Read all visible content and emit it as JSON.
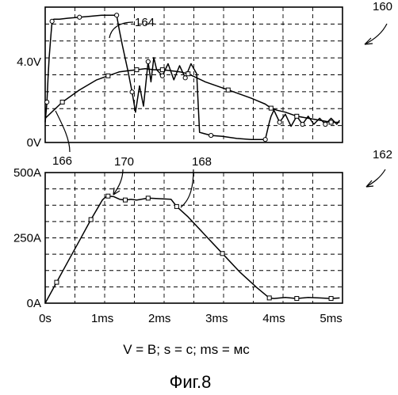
{
  "chart_data": [
    {
      "type": "line",
      "figure_ref": "160",
      "yticks": [
        "4.0V",
        "0V"
      ],
      "ytick_values": [
        4.0,
        0
      ],
      "ylim": [
        0,
        6.7
      ],
      "xlim": [
        0,
        5.2
      ],
      "grid": true,
      "series": [
        {
          "name": "164",
          "x": [
            0,
            0.03,
            0.05,
            0.07,
            0.1,
            0.12,
            0.15,
            0.25,
            0.4,
            0.6,
            0.8,
            1.0,
            1.15,
            1.25,
            1.3,
            1.35,
            1.45,
            1.52,
            1.58,
            1.65,
            1.72,
            1.8,
            1.85,
            1.9,
            1.95,
            2.05,
            2.15,
            2.25,
            2.35,
            2.45,
            2.55,
            2.65,
            2.7,
            2.9,
            3.1,
            3.35,
            3.6,
            3.85,
            3.92,
            3.95,
            4.0,
            4.1,
            4.2,
            4.3,
            4.4,
            4.5,
            4.6,
            4.7,
            4.8,
            4.9,
            5.0,
            5.1,
            5.15
          ],
          "y": [
            1.0,
            2.0,
            3.2,
            4.2,
            5.3,
            6.0,
            6.1,
            6.1,
            6.15,
            6.2,
            6.25,
            6.3,
            6.3,
            6.3,
            5.5,
            4.8,
            3.5,
            2.5,
            1.5,
            2.8,
            1.8,
            4.0,
            3.0,
            4.2,
            3.6,
            3.3,
            3.9,
            3.1,
            3.8,
            3.2,
            3.9,
            3.4,
            0.5,
            0.35,
            0.3,
            0.2,
            0.15,
            0.15,
            1.0,
            1.3,
            1.6,
            1.0,
            1.4,
            0.8,
            1.3,
            0.9,
            1.3,
            0.9,
            1.2,
            0.9,
            1.2,
            0.9,
            1.1
          ],
          "color": "#000000"
        },
        {
          "name": "166",
          "x": [
            0,
            0.3,
            0.6,
            0.9,
            1.1,
            1.3,
            1.45,
            1.6,
            1.75,
            1.9,
            2.05,
            2.2,
            2.35,
            2.5,
            2.65,
            2.8,
            3.2,
            3.6,
            3.85,
            3.95,
            4.05,
            4.2,
            4.4,
            4.6,
            4.8,
            5.0,
            5.15
          ],
          "y": [
            1.2,
            2.0,
            2.6,
            3.1,
            3.3,
            3.5,
            3.55,
            3.6,
            3.65,
            3.6,
            3.6,
            3.55,
            3.5,
            3.4,
            3.2,
            3.0,
            2.6,
            2.2,
            1.9,
            1.7,
            1.6,
            1.5,
            1.3,
            1.2,
            1.1,
            1.0,
            1.0
          ],
          "color": "#000000"
        }
      ],
      "annotations": [
        "164",
        "166"
      ]
    },
    {
      "type": "line",
      "figure_ref": "162",
      "xticks": [
        "0s",
        "1ms",
        "2ms",
        "3ms",
        "4ms",
        "5ms"
      ],
      "xtick_values": [
        0,
        1,
        2,
        3,
        4,
        5
      ],
      "yticks": [
        "500A",
        "250A",
        "0A"
      ],
      "ytick_values": [
        500,
        250,
        0
      ],
      "xlim": [
        0,
        5.2
      ],
      "ylim": [
        0,
        500
      ],
      "grid": true,
      "series": [
        {
          "name": "168",
          "x": [
            0,
            0.2,
            0.4,
            0.6,
            0.8,
            1.0,
            1.05,
            1.1,
            1.2,
            1.3,
            1.4,
            1.5,
            1.6,
            1.8,
            2.0,
            2.2,
            2.3,
            2.5,
            2.8,
            3.1,
            3.4,
            3.7,
            3.92,
            4.0,
            4.2,
            4.4,
            4.6,
            4.8,
            5.0,
            5.15
          ],
          "y": [
            0,
            80,
            160,
            240,
            320,
            395,
            405,
            410,
            408,
            398,
            395,
            398,
            395,
            402,
            400,
            398,
            370,
            330,
            260,
            190,
            120,
            60,
            20,
            18,
            22,
            18,
            22,
            20,
            18,
            20
          ],
          "color": "#000000"
        }
      ],
      "annotations": [
        "170",
        "168"
      ]
    }
  ],
  "caption": "V = В; s = с; ms = мс",
  "figure_label": "Фиг.8",
  "labels": {
    "ref_160": "160",
    "ref_162": "162",
    "ref_164": "164",
    "ref_166": "166",
    "ref_168": "168",
    "ref_170": "170"
  }
}
